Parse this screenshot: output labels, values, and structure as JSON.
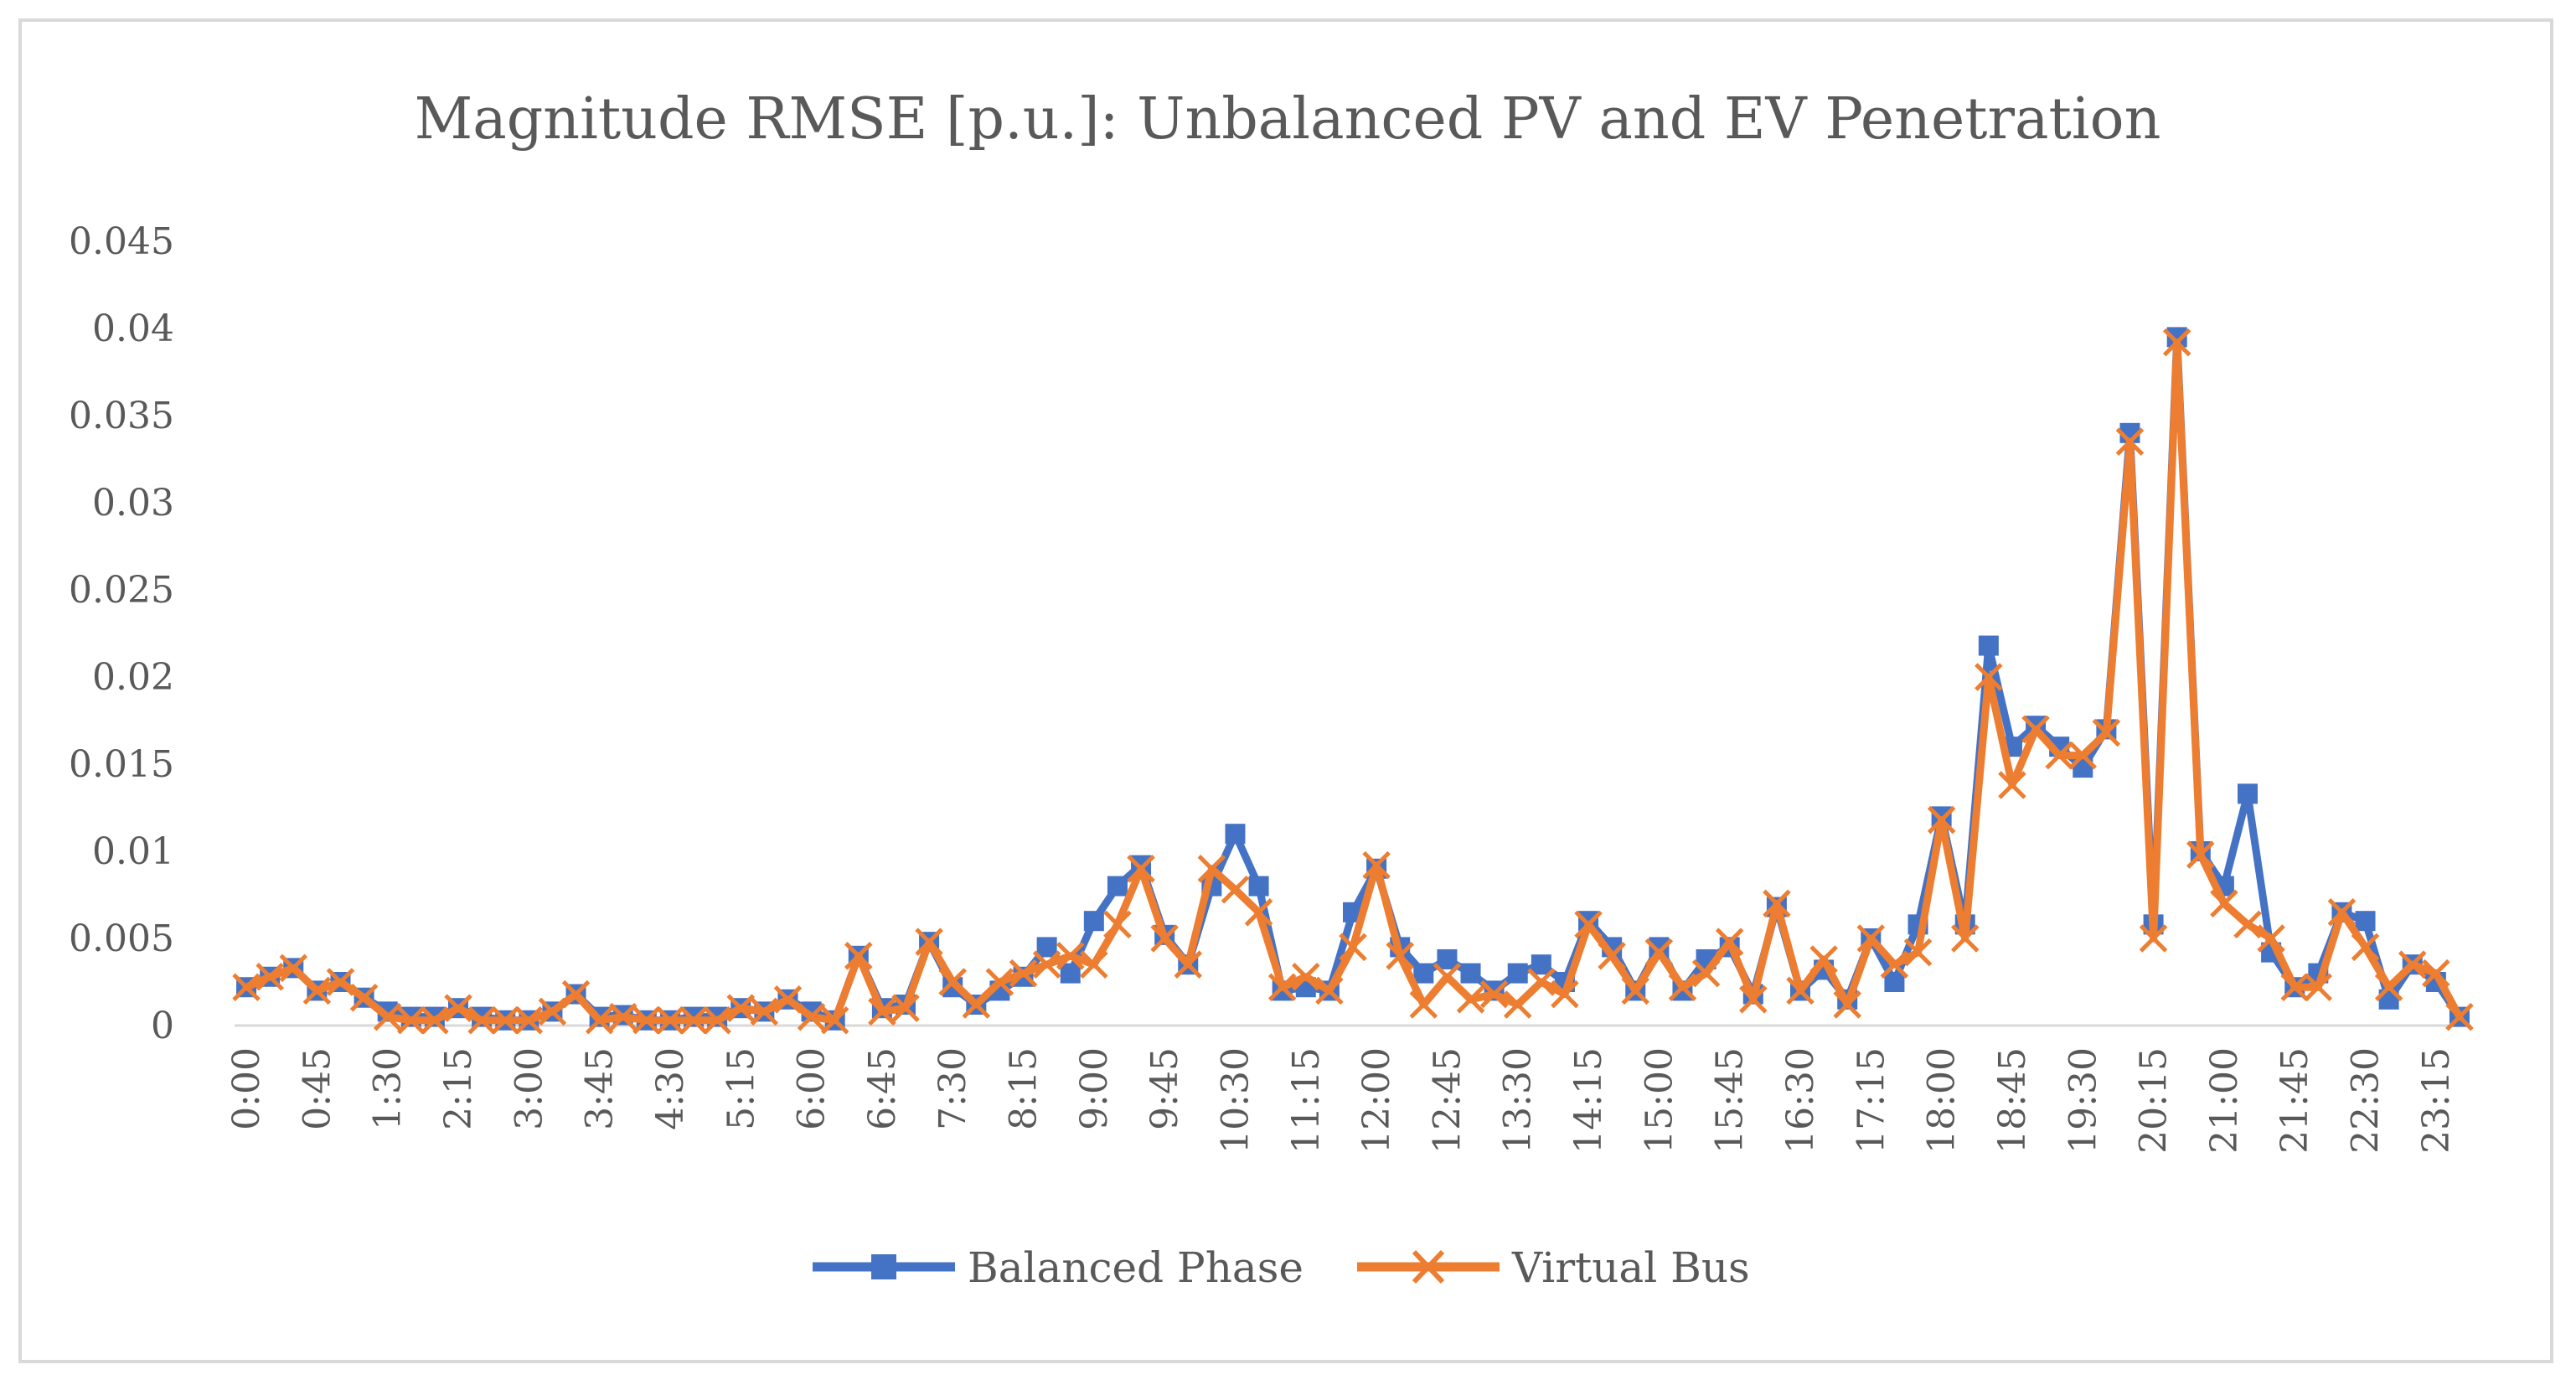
{
  "chart_data": {
    "type": "line",
    "title": "Magnitude RMSE [p.u.]: Unbalanced PV and EV Penetration",
    "xlabel": "",
    "ylabel": "",
    "ylim": [
      0,
      0.045
    ],
    "y_ticks": [
      "0",
      "0.005",
      "0.01",
      "0.015",
      "0.02",
      "0.025",
      "0.03",
      "0.035",
      "0.04",
      "0.045"
    ],
    "y_tick_values": [
      0,
      0.005,
      0.01,
      0.015,
      0.02,
      0.025,
      0.03,
      0.035,
      0.04,
      0.045
    ],
    "x_tick_labels": [
      "0:00",
      "0:45",
      "1:30",
      "2:15",
      "3:00",
      "3:45",
      "4:30",
      "5:15",
      "6:00",
      "6:45",
      "7:30",
      "8:15",
      "9:00",
      "9:45",
      "10:30",
      "11:15",
      "12:00",
      "12:45",
      "13:30",
      "14:15",
      "15:00",
      "15:45",
      "16:30",
      "17:15",
      "18:00",
      "18:45",
      "19:30",
      "20:15",
      "21:00",
      "21:45",
      "22:30",
      "23:15"
    ],
    "x_tick_step": 3,
    "interval_minutes": 15,
    "grid": false,
    "legend_position": "bottom",
    "series": [
      {
        "name": "Balanced Phase",
        "color": "#4472C4",
        "marker": "square",
        "values": [
          0.0022,
          0.0028,
          0.0033,
          0.002,
          0.0025,
          0.0016,
          0.0008,
          0.0005,
          0.0005,
          0.001,
          0.0005,
          0.0003,
          0.0003,
          0.0008,
          0.0018,
          0.0005,
          0.0006,
          0.0003,
          0.0003,
          0.0005,
          0.0005,
          0.001,
          0.0008,
          0.0015,
          0.0008,
          0.0003,
          0.004,
          0.001,
          0.0012,
          0.0048,
          0.0022,
          0.0012,
          0.002,
          0.0028,
          0.0045,
          0.003,
          0.006,
          0.008,
          0.0092,
          0.0052,
          0.0035,
          0.008,
          0.011,
          0.008,
          0.002,
          0.0022,
          0.002,
          0.0065,
          0.009,
          0.0045,
          0.003,
          0.0038,
          0.003,
          0.002,
          0.003,
          0.0035,
          0.0025,
          0.006,
          0.0045,
          0.002,
          0.0045,
          0.002,
          0.0038,
          0.0045,
          0.0018,
          0.0068,
          0.002,
          0.0032,
          0.0015,
          0.005,
          0.0025,
          0.0058,
          0.012,
          0.0058,
          0.0218,
          0.016,
          0.0172,
          0.016,
          0.0148,
          0.017,
          0.034,
          0.0058,
          0.0395,
          0.01,
          0.008,
          0.0133,
          0.0042,
          0.0022,
          0.003,
          0.0065,
          0.006,
          0.0015,
          0.0035,
          0.0025,
          0.0005
        ]
      },
      {
        "name": "Virtual Bus",
        "color": "#ED7D31",
        "marker": "x",
        "values": [
          0.0022,
          0.0028,
          0.0033,
          0.002,
          0.0025,
          0.0016,
          0.0005,
          0.0003,
          0.0003,
          0.001,
          0.0003,
          0.0003,
          0.0003,
          0.0008,
          0.0018,
          0.0003,
          0.0005,
          0.0003,
          0.0003,
          0.0003,
          0.0003,
          0.001,
          0.0008,
          0.0015,
          0.0005,
          0.0003,
          0.004,
          0.0008,
          0.001,
          0.0048,
          0.0025,
          0.0012,
          0.0025,
          0.003,
          0.0035,
          0.004,
          0.0035,
          0.0058,
          0.009,
          0.005,
          0.0035,
          0.009,
          0.0078,
          0.0065,
          0.0022,
          0.0028,
          0.002,
          0.0045,
          0.0092,
          0.004,
          0.0012,
          0.0028,
          0.0015,
          0.0018,
          0.0012,
          0.0025,
          0.0018,
          0.0058,
          0.004,
          0.002,
          0.0042,
          0.0022,
          0.003,
          0.0048,
          0.0015,
          0.007,
          0.002,
          0.0038,
          0.0012,
          0.005,
          0.0035,
          0.0042,
          0.0118,
          0.005,
          0.02,
          0.0138,
          0.017,
          0.0155,
          0.0155,
          0.0168,
          0.0335,
          0.005,
          0.0392,
          0.0098,
          0.007,
          0.0058,
          0.005,
          0.0022,
          0.0022,
          0.0065,
          0.0045,
          0.0022,
          0.0035,
          0.003,
          0.0005
        ]
      }
    ]
  }
}
